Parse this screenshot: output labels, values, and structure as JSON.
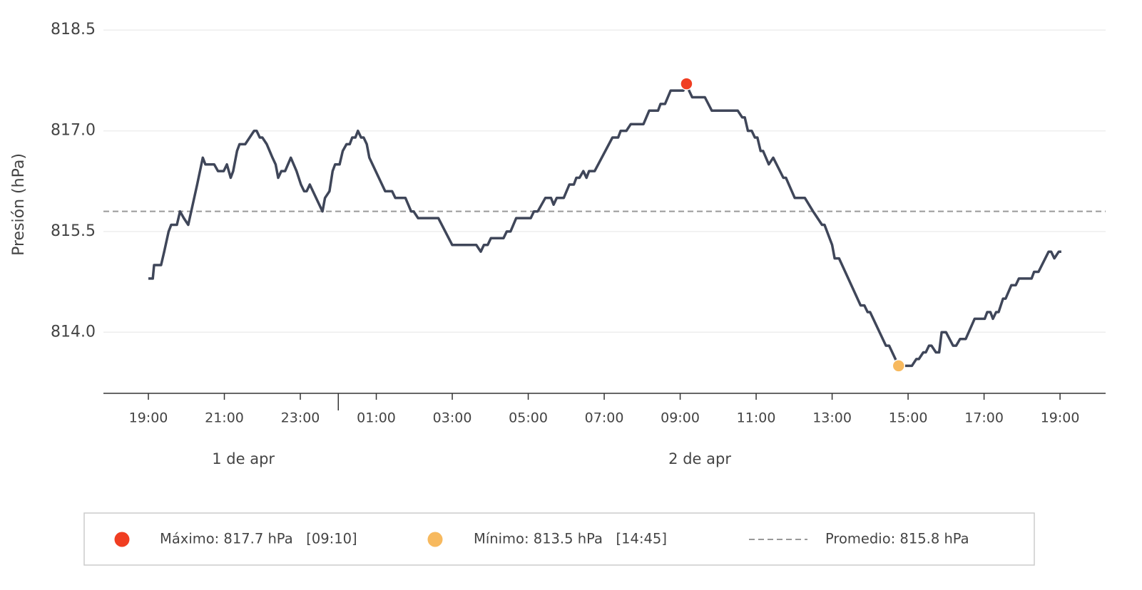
{
  "chart_data": {
    "type": "line",
    "ylabel": "Presión (hPa)",
    "x": [
      "04-01 19:00",
      "04-01 19:07",
      "04-01 19:09",
      "04-01 19:20",
      "04-01 19:25",
      "04-01 19:32",
      "04-01 19:36",
      "04-01 19:45",
      "04-01 19:50",
      "04-01 19:56",
      "04-01 20:03",
      "04-01 20:17",
      "04-01 20:26",
      "04-01 20:30",
      "04-01 20:44",
      "04-01 20:50",
      "04-01 20:59",
      "04-01 21:04",
      "04-01 21:10",
      "04-01 21:14",
      "04-01 21:20",
      "04-01 21:24",
      "04-01 21:33",
      "04-01 21:47",
      "04-01 21:51",
      "04-01 21:56",
      "04-01 22:00",
      "04-01 22:07",
      "04-01 22:16",
      "04-01 22:21",
      "04-01 22:25",
      "04-01 22:30",
      "04-01 22:36",
      "04-01 22:45",
      "04-01 22:54",
      "04-01 23:01",
      "04-01 23:06",
      "04-01 23:10",
      "04-01 23:15",
      "04-01 23:35",
      "04-01 23:39",
      "04-01 23:46",
      "04-01 23:51",
      "04-01 23:55",
      "04-02 00:02",
      "04-02 00:07",
      "04-02 00:13",
      "04-02 00:18",
      "04-02 00:22",
      "04-02 00:27",
      "04-02 00:31",
      "04-02 00:36",
      "04-02 00:40",
      "04-02 00:45",
      "04-02 00:49",
      "04-02 01:14",
      "04-02 01:25",
      "04-02 01:30",
      "04-02 01:46",
      "04-02 01:55",
      "04-02 01:59",
      "04-02 02:06",
      "04-02 02:38",
      "04-02 03:00",
      "04-02 03:38",
      "04-02 03:45",
      "04-02 03:50",
      "04-02 03:56",
      "04-02 04:01",
      "04-02 04:21",
      "04-02 04:26",
      "04-02 04:32",
      "04-02 04:41",
      "04-02 05:04",
      "04-02 05:09",
      "04-02 05:15",
      "04-02 05:27",
      "04-02 05:36",
      "04-02 05:40",
      "04-02 05:45",
      "04-02 05:56",
      "04-02 06:05",
      "04-02 06:12",
      "04-02 06:16",
      "04-02 06:21",
      "04-02 06:27",
      "04-02 06:32",
      "04-02 06:36",
      "04-02 06:45",
      "04-02 07:13",
      "04-02 07:22",
      "04-02 07:26",
      "04-02 07:35",
      "04-02 07:42",
      "04-02 08:02",
      "04-02 08:11",
      "04-02 08:25",
      "04-02 08:29",
      "04-02 08:36",
      "04-02 08:45",
      "04-02 09:05",
      "04-02 09:10",
      "04-02 09:14",
      "04-02 09:19",
      "04-02 09:39",
      "04-02 09:50",
      "04-02 10:31",
      "04-02 10:38",
      "04-02 10:42",
      "04-02 10:47",
      "04-02 10:53",
      "04-02 10:58",
      "04-02 11:02",
      "04-02 11:07",
      "04-02 11:11",
      "04-02 11:20",
      "04-02 11:27",
      "04-02 11:43",
      "04-02 11:47",
      "04-02 12:01",
      "04-02 12:17",
      "04-02 12:30",
      "04-02 12:37",
      "04-02 12:44",
      "04-02 12:48",
      "04-02 13:00",
      "04-02 13:04",
      "04-02 13:11",
      "04-02 13:45",
      "04-02 13:51",
      "04-02 13:56",
      "04-02 14:00",
      "04-02 14:25",
      "04-02 14:30",
      "04-02 14:45",
      "04-02 15:06",
      "04-02 15:13",
      "04-02 15:17",
      "04-02 15:24",
      "04-02 15:28",
      "04-02 15:33",
      "04-02 15:37",
      "04-02 15:44",
      "04-02 15:49",
      "04-02 15:53",
      "04-02 16:00",
      "04-02 16:11",
      "04-02 16:16",
      "04-02 16:22",
      "04-02 16:31",
      "04-02 16:45",
      "04-02 17:01",
      "04-02 17:05",
      "04-02 17:10",
      "04-02 17:14",
      "04-02 17:19",
      "04-02 17:23",
      "04-02 17:30",
      "04-02 17:34",
      "04-02 17:43",
      "04-02 17:50",
      "04-02 17:55",
      "04-02 18:15",
      "04-02 18:19",
      "04-02 18:26",
      "04-02 18:42",
      "04-02 18:46",
      "04-02 18:51",
      "04-02 18:58",
      "04-02 19:02"
    ],
    "series": [
      {
        "color": "#3f4659",
        "values": [
          814.8,
          814.8,
          815.0,
          815.0,
          815.2,
          815.5,
          815.6,
          815.6,
          815.8,
          815.7,
          815.6,
          816.2,
          816.6,
          816.5,
          816.5,
          816.4,
          816.4,
          816.5,
          816.3,
          816.4,
          816.7,
          816.8,
          816.8,
          817.0,
          817.0,
          816.9,
          816.9,
          816.8,
          816.6,
          816.5,
          816.3,
          816.4,
          816.4,
          816.6,
          816.4,
          816.2,
          816.1,
          816.1,
          816.2,
          815.8,
          816.0,
          816.1,
          816.4,
          816.5,
          816.5,
          816.7,
          816.8,
          816.8,
          816.9,
          816.9,
          817.0,
          816.9,
          816.9,
          816.8,
          816.6,
          816.1,
          816.1,
          816.0,
          816.0,
          815.8,
          815.8,
          815.7,
          815.7,
          815.3,
          815.3,
          815.2,
          815.3,
          815.3,
          815.4,
          815.4,
          815.5,
          815.5,
          815.7,
          815.7,
          815.8,
          815.8,
          816.0,
          816.0,
          815.9,
          816.0,
          816.0,
          816.2,
          816.2,
          816.3,
          816.3,
          816.4,
          816.3,
          816.4,
          816.4,
          816.9,
          816.9,
          817.0,
          817.0,
          817.1,
          817.1,
          817.3,
          817.3,
          817.4,
          817.4,
          817.6,
          817.6,
          817.7,
          817.6,
          817.5,
          817.5,
          817.3,
          817.3,
          817.2,
          817.2,
          817.0,
          817.0,
          816.9,
          816.9,
          816.7,
          816.7,
          816.5,
          816.6,
          816.3,
          816.3,
          816.0,
          816.0,
          815.8,
          815.7,
          815.6,
          815.6,
          815.3,
          815.1,
          815.1,
          814.4,
          814.4,
          814.3,
          814.3,
          813.8,
          813.8,
          813.5,
          813.5,
          813.6,
          813.6,
          813.7,
          813.7,
          813.8,
          813.8,
          813.7,
          813.7,
          814.0,
          814.0,
          813.8,
          813.8,
          813.9,
          813.9,
          814.2,
          814.2,
          814.3,
          814.3,
          814.2,
          814.3,
          814.3,
          814.5,
          814.5,
          814.7,
          814.7,
          814.8,
          814.8,
          814.9,
          814.9,
          815.2,
          815.2,
          815.1,
          815.2,
          815.2
        ]
      }
    ],
    "xlim": [
      "04-01 17:49",
      "04-02 20:12"
    ],
    "xticks": [
      {
        "value": "04-01 19:00",
        "label": "19:00"
      },
      {
        "value": "04-01 21:00",
        "label": "21:00"
      },
      {
        "value": "04-01 23:00",
        "label": "23:00"
      },
      {
        "value": "04-02 01:00",
        "label": "01:00"
      },
      {
        "value": "04-02 03:00",
        "label": "03:00"
      },
      {
        "value": "04-02 05:00",
        "label": "05:00"
      },
      {
        "value": "04-02 07:00",
        "label": "07:00"
      },
      {
        "value": "04-02 09:00",
        "label": "09:00"
      },
      {
        "value": "04-02 11:00",
        "label": "11:00"
      },
      {
        "value": "04-02 13:00",
        "label": "13:00"
      },
      {
        "value": "04-02 15:00",
        "label": "15:00"
      },
      {
        "value": "04-02 17:00",
        "label": "17:00"
      },
      {
        "value": "04-02 19:00",
        "label": "19:00"
      }
    ],
    "days": [
      {
        "value": "04-01",
        "label": "1 de apr"
      },
      {
        "value": "04-02",
        "label": "2 de apr"
      }
    ],
    "ylim": [
      813.09,
      818.63
    ],
    "yticks": [
      {
        "value": 814,
        "label": "814.0"
      },
      {
        "value": 815.5,
        "label": "815.5"
      },
      {
        "value": 817,
        "label": "817.0"
      },
      {
        "value": 818.5,
        "label": "818.5"
      }
    ],
    "grid": true,
    "highlights": [
      {
        "x": "04-02 09:10",
        "value": 817.7,
        "color": "#f03e22",
        "label": "Máximo: 817.7 hPa   [09:10]"
      },
      {
        "x": "04-02 14:45",
        "value": 813.5,
        "color": "#f7b95e",
        "label": "Mínimo: 813.5 hPa   [14:45]"
      }
    ],
    "mean": {
      "value": 815.8,
      "color": "#999999",
      "label": "Promedio: 815.8 hPa"
    },
    "legend": "bottom"
  }
}
